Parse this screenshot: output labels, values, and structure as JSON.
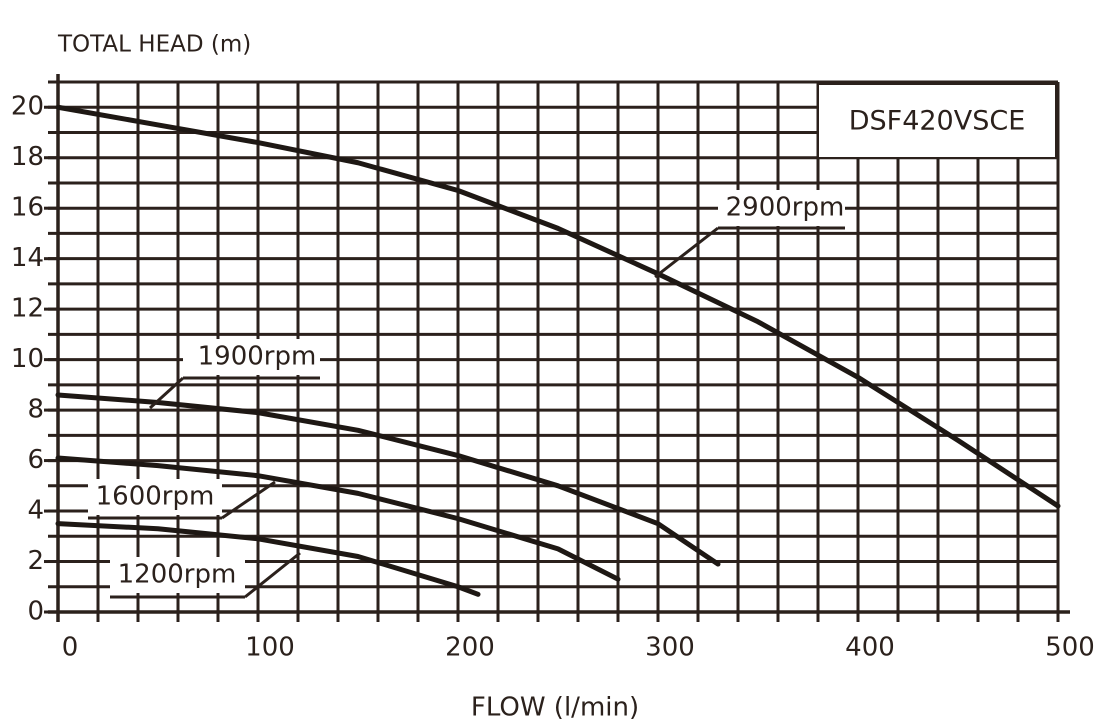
{
  "chart_data": {
    "type": "line",
    "y_axis_label": "TOTAL HEAD (m)",
    "x_axis_label": "FLOW (l/min)",
    "model": "DSF420VSCE",
    "xlim": [
      0,
      500
    ],
    "ylim": [
      0,
      21
    ],
    "xticks": [
      0,
      100,
      200,
      300,
      400,
      500
    ],
    "yticks": [
      0,
      2,
      4,
      6,
      8,
      10,
      12,
      14,
      16,
      18,
      20
    ],
    "x_grid": [
      0,
      20,
      40,
      60,
      80,
      100,
      120,
      140,
      160,
      180,
      200,
      220,
      240,
      260,
      280,
      300,
      320,
      340,
      360,
      380,
      400,
      420,
      440,
      460,
      480,
      500
    ],
    "y_grid": [
      0,
      1,
      2,
      3,
      4,
      5,
      6,
      7,
      8,
      9,
      10,
      11,
      12,
      13,
      14,
      15,
      16,
      17,
      18,
      19,
      20,
      21
    ],
    "grid": true,
    "color": "#2b211c",
    "series": [
      {
        "name": "2900rpm",
        "color": "#1e1814",
        "x": [
          0,
          50,
          100,
          150,
          200,
          250,
          300,
          350,
          400,
          450,
          500
        ],
        "values": [
          20,
          19.3,
          18.6,
          17.8,
          16.7,
          15.2,
          13.4,
          11.5,
          9.3,
          6.8,
          4.2
        ]
      },
      {
        "name": "1900rpm",
        "color": "#1e1814",
        "x": [
          0,
          50,
          100,
          150,
          200,
          250,
          300,
          330
        ],
        "values": [
          8.6,
          8.3,
          7.9,
          7.2,
          6.2,
          5.0,
          3.5,
          1.9
        ]
      },
      {
        "name": "1600rpm",
        "color": "#1e1814",
        "x": [
          0,
          50,
          100,
          150,
          200,
          250,
          280
        ],
        "values": [
          6.1,
          5.8,
          5.4,
          4.7,
          3.7,
          2.5,
          1.3
        ]
      },
      {
        "name": "1200rpm",
        "color": "#1e1814",
        "x": [
          0,
          50,
          100,
          150,
          200,
          210
        ],
        "values": [
          3.5,
          3.3,
          2.9,
          2.2,
          1.0,
          0.7
        ]
      }
    ]
  }
}
